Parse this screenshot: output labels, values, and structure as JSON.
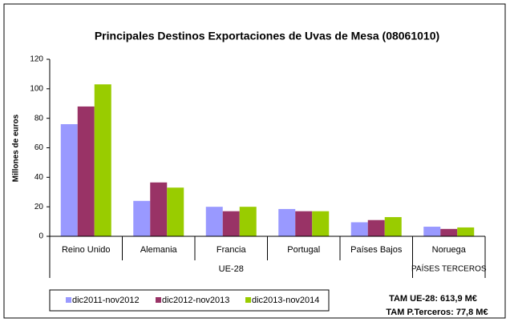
{
  "chart_data": {
    "type": "bar",
    "title": "Principales Destinos Exportaciones de Uvas de Mesa (08061010)",
    "y_label": "Millones de euros",
    "categories": [
      "Reino Unido",
      "Alemania",
      "Francia",
      "Portugal",
      "Países Bajos",
      "Noruega"
    ],
    "groups": [
      "UE-28",
      "PAÍSES TERCEROS"
    ],
    "series": [
      {
        "name": "dic2011-nov2012",
        "color": "#9999ff",
        "values": [
          76,
          24,
          20,
          18.5,
          9.5,
          6.5
        ]
      },
      {
        "name": "dic2012-nov2013",
        "color": "#993366",
        "values": [
          88,
          36.5,
          17,
          17,
          11,
          5
        ]
      },
      {
        "name": "dic2013-nov2014",
        "color": "#99cc00",
        "values": [
          103,
          33,
          20,
          17,
          13,
          6
        ]
      }
    ],
    "ylim": [
      0,
      120
    ],
    "yticks": [
      0,
      20,
      40,
      60,
      80,
      100,
      120
    ],
    "grid": false,
    "annotations": [
      "TAM  UE-28: 613,9 M€",
      "TAM P.Terceros: 77,8 M€"
    ]
  }
}
